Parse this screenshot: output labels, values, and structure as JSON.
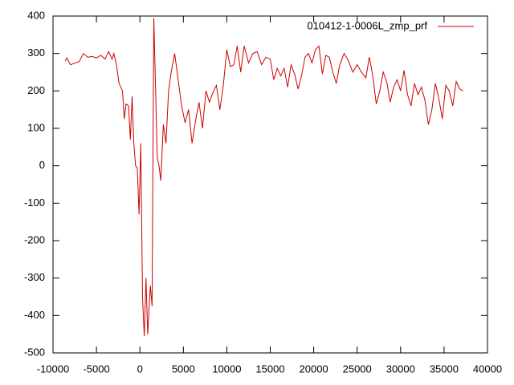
{
  "chart_data": {
    "type": "line",
    "x": [
      -8600,
      -8400,
      -8000,
      -7000,
      -6500,
      -6000,
      -5500,
      -5000,
      -4500,
      -4000,
      -3600,
      -3200,
      -3000,
      -2700,
      -2400,
      -2000,
      -1800,
      -1600,
      -1300,
      -1100,
      -900,
      -700,
      -500,
      -300,
      -100,
      100,
      300,
      500,
      700,
      900,
      1200,
      1400,
      1600,
      1800,
      2000,
      2200,
      2400,
      2700,
      3000,
      3300,
      3600,
      4000,
      4400,
      4800,
      5200,
      5600,
      6000,
      6400,
      6800,
      7200,
      7600,
      8000,
      8400,
      8800,
      9200,
      9600,
      10000,
      10400,
      10800,
      11200,
      11600,
      12000,
      12500,
      13000,
      13500,
      14000,
      14500,
      15000,
      15400,
      15800,
      16200,
      16600,
      17000,
      17400,
      17800,
      18200,
      18600,
      19000,
      19400,
      19800,
      20200,
      20600,
      21000,
      21400,
      21800,
      22200,
      22600,
      23000,
      23500,
      24000,
      24500,
      25000,
      25500,
      26000,
      26400,
      26800,
      27200,
      27600,
      28000,
      28400,
      28800,
      29200,
      29600,
      30000,
      30400,
      30800,
      31200,
      31600,
      32000,
      32400,
      32800,
      33200,
      33600,
      34000,
      34400,
      34800,
      35200,
      35600,
      36000,
      36400,
      36800,
      37200
    ],
    "series": [
      {
        "name": "010412-1-0006L_zmp_prf",
        "color": "#cc0000",
        "values": [
          280,
          288,
          270,
          278,
          300,
          290,
          292,
          288,
          295,
          285,
          305,
          285,
          300,
          270,
          220,
          200,
          125,
          165,
          160,
          70,
          185,
          60,
          0,
          -5,
          -130,
          60,
          -350,
          -455,
          -300,
          -450,
          -320,
          -375,
          395,
          210,
          20,
          0,
          -40,
          110,
          60,
          200,
          250,
          300,
          230,
          160,
          115,
          150,
          60,
          120,
          170,
          100,
          200,
          170,
          195,
          215,
          150,
          215,
          310,
          265,
          270,
          320,
          250,
          320,
          275,
          300,
          305,
          270,
          290,
          285,
          230,
          260,
          240,
          260,
          210,
          270,
          245,
          205,
          240,
          290,
          300,
          275,
          310,
          320,
          245,
          295,
          290,
          250,
          220,
          270,
          300,
          280,
          250,
          270,
          250,
          235,
          290,
          240,
          165,
          200,
          250,
          225,
          170,
          210,
          230,
          200,
          255,
          190,
          160,
          220,
          190,
          210,
          175,
          110,
          150,
          220,
          180,
          125,
          215,
          200,
          160,
          225,
          205,
          200
        ]
      }
    ],
    "xlim": [
      -10000,
      40000
    ],
    "xticks": [
      -10000,
      -5000,
      0,
      5000,
      10000,
      15000,
      20000,
      25000,
      30000,
      35000,
      40000
    ],
    "ylim": [
      -500,
      400
    ],
    "yticks": [
      -500,
      -400,
      -300,
      -200,
      -100,
      0,
      100,
      200,
      300,
      400
    ]
  }
}
